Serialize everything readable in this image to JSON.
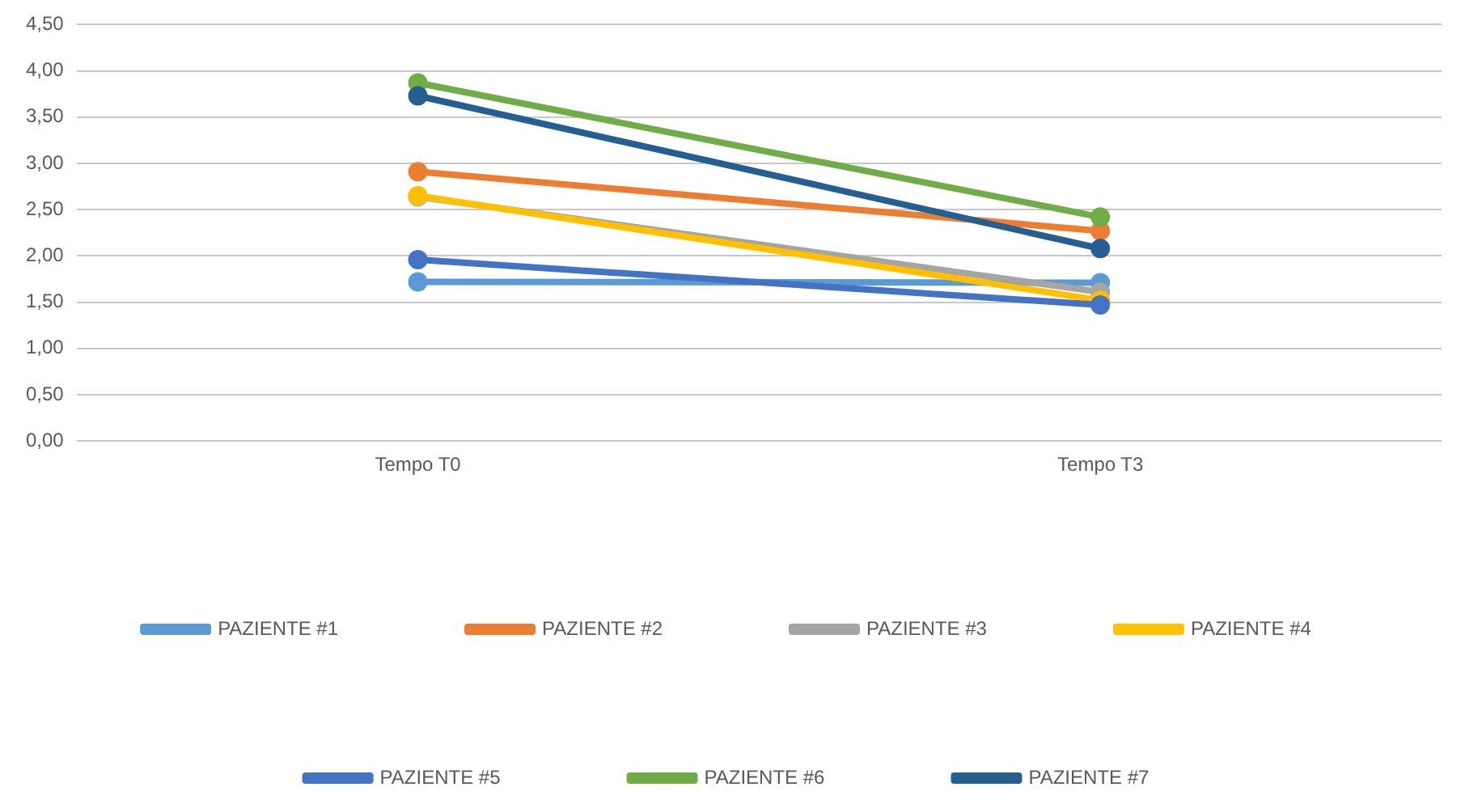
{
  "chart_data": {
    "type": "line",
    "categories": [
      "Tempo T0",
      "Tempo T3"
    ],
    "series": [
      {
        "name": "PAZIENTE #1",
        "color": "#5b9bd5",
        "values": [
          1.72,
          1.71
        ]
      },
      {
        "name": "PAZIENTE #2",
        "color": "#ed7d31",
        "values": [
          2.91,
          2.27
        ]
      },
      {
        "name": "PAZIENTE #3",
        "color": "#a5a5a5",
        "values": [
          2.64,
          1.61
        ]
      },
      {
        "name": "PAZIENTE #4",
        "color": "#ffc000",
        "values": [
          2.65,
          1.52
        ]
      },
      {
        "name": "PAZIENTE #5",
        "color": "#4472c4",
        "values": [
          1.96,
          1.47
        ]
      },
      {
        "name": "PAZIENTE #6",
        "color": "#70ad47",
        "values": [
          3.87,
          2.42
        ]
      },
      {
        "name": "PAZIENTE #7",
        "color": "#255e91",
        "values": [
          3.73,
          2.08
        ]
      }
    ],
    "ylim": [
      0,
      4.5
    ],
    "yticks": [
      {
        "value": 0,
        "label": "0,00"
      },
      {
        "value": 0.5,
        "label": "0,50"
      },
      {
        "value": 1,
        "label": "1,00"
      },
      {
        "value": 1.5,
        "label": "1,50"
      },
      {
        "value": 2,
        "label": "2,00"
      },
      {
        "value": 2.5,
        "label": "2,50"
      },
      {
        "value": 3,
        "label": "3,00"
      },
      {
        "value": 3.5,
        "label": "3,50"
      },
      {
        "value": 4,
        "label": "4,00"
      },
      {
        "value": 4.5,
        "label": "4,50"
      }
    ],
    "grid": "y",
    "legend": "bottom",
    "marker": "circle",
    "line_style": "solid"
  }
}
